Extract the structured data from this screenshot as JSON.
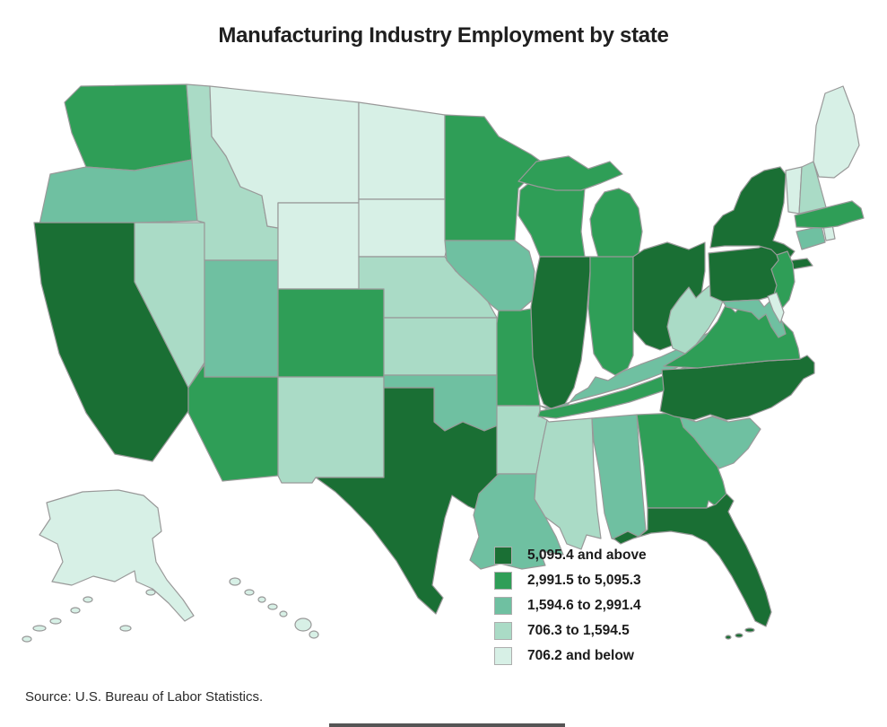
{
  "title": "Manufacturing Industry Employment by state",
  "source_note": "Source: U.S. Bureau of Labor Statistics.",
  "chart_data": {
    "type": "choropleth",
    "region": "United States",
    "title": "Manufacturing Industry Employment by state",
    "legend_position": "bottom-right-over-map",
    "state_border_color": "#999999",
    "background_color": "#ffffff",
    "legend": [
      {
        "label": "5,095.4 and above",
        "color": "#1a6f34"
      },
      {
        "label": "2,991.5 to 5,095.3",
        "color": "#2f9e57"
      },
      {
        "label": "1,594.6 to 2,991.4",
        "color": "#6fc0a1"
      },
      {
        "label": "706.3 to 1,594.5",
        "color": "#aadbc6"
      },
      {
        "label": "706.2 and below",
        "color": "#d7f0e6"
      }
    ],
    "dc_marker": {
      "label": "District of Columbia",
      "fill": "#b5d8ea",
      "stroke": "#73a9cb"
    },
    "states": [
      {
        "id": "WA",
        "name": "Washington",
        "bin": 1
      },
      {
        "id": "OR",
        "name": "Oregon",
        "bin": 2
      },
      {
        "id": "CA",
        "name": "California",
        "bin": 0
      },
      {
        "id": "NV",
        "name": "Nevada",
        "bin": 3
      },
      {
        "id": "ID",
        "name": "Idaho",
        "bin": 3
      },
      {
        "id": "MT",
        "name": "Montana",
        "bin": 4
      },
      {
        "id": "WY",
        "name": "Wyoming",
        "bin": 4
      },
      {
        "id": "UT",
        "name": "Utah",
        "bin": 2
      },
      {
        "id": "CO",
        "name": "Colorado",
        "bin": 1
      },
      {
        "id": "AZ",
        "name": "Arizona",
        "bin": 1
      },
      {
        "id": "NM",
        "name": "New Mexico",
        "bin": 3
      },
      {
        "id": "ND",
        "name": "North Dakota",
        "bin": 4
      },
      {
        "id": "SD",
        "name": "South Dakota",
        "bin": 4
      },
      {
        "id": "NE",
        "name": "Nebraska",
        "bin": 3
      },
      {
        "id": "KS",
        "name": "Kansas",
        "bin": 3
      },
      {
        "id": "OK",
        "name": "Oklahoma",
        "bin": 2
      },
      {
        "id": "TX",
        "name": "Texas",
        "bin": 0
      },
      {
        "id": "MN",
        "name": "Minnesota",
        "bin": 1
      },
      {
        "id": "IA",
        "name": "Iowa",
        "bin": 2
      },
      {
        "id": "MO",
        "name": "Missouri",
        "bin": 1
      },
      {
        "id": "AR",
        "name": "Arkansas",
        "bin": 3
      },
      {
        "id": "LA",
        "name": "Louisiana",
        "bin": 2
      },
      {
        "id": "WI",
        "name": "Wisconsin",
        "bin": 1
      },
      {
        "id": "IL",
        "name": "Illinois",
        "bin": 0
      },
      {
        "id": "MI",
        "name": "Michigan",
        "bin": 1
      },
      {
        "id": "IN",
        "name": "Indiana",
        "bin": 1
      },
      {
        "id": "OH",
        "name": "Ohio",
        "bin": 0
      },
      {
        "id": "KY",
        "name": "Kentucky",
        "bin": 2
      },
      {
        "id": "TN",
        "name": "Tennessee",
        "bin": 1
      },
      {
        "id": "MS",
        "name": "Mississippi",
        "bin": 3
      },
      {
        "id": "AL",
        "name": "Alabama",
        "bin": 2
      },
      {
        "id": "GA",
        "name": "Georgia",
        "bin": 1
      },
      {
        "id": "SC",
        "name": "South Carolina",
        "bin": 2
      },
      {
        "id": "NC",
        "name": "North Carolina",
        "bin": 0
      },
      {
        "id": "VA",
        "name": "Virginia",
        "bin": 1
      },
      {
        "id": "WV",
        "name": "West Virginia",
        "bin": 3
      },
      {
        "id": "FL",
        "name": "Florida",
        "bin": 0
      },
      {
        "id": "PA",
        "name": "Pennsylvania",
        "bin": 0
      },
      {
        "id": "NY",
        "name": "New York",
        "bin": 0
      },
      {
        "id": "NJ",
        "name": "New Jersey",
        "bin": 1
      },
      {
        "id": "MD",
        "name": "Maryland",
        "bin": 2
      },
      {
        "id": "DE",
        "name": "Delaware",
        "bin": 4
      },
      {
        "id": "CT",
        "name": "Connecticut",
        "bin": 2
      },
      {
        "id": "RI",
        "name": "Rhode Island",
        "bin": 4
      },
      {
        "id": "MA",
        "name": "Massachusetts",
        "bin": 1
      },
      {
        "id": "VT",
        "name": "Vermont",
        "bin": 4
      },
      {
        "id": "NH",
        "name": "New Hampshire",
        "bin": 3
      },
      {
        "id": "ME",
        "name": "Maine",
        "bin": 4
      },
      {
        "id": "AK",
        "name": "Alaska",
        "bin": 4
      },
      {
        "id": "HI",
        "name": "Hawaii",
        "bin": 4
      },
      {
        "id": "DC",
        "name": "District of Columbia",
        "bin": null
      }
    ]
  }
}
